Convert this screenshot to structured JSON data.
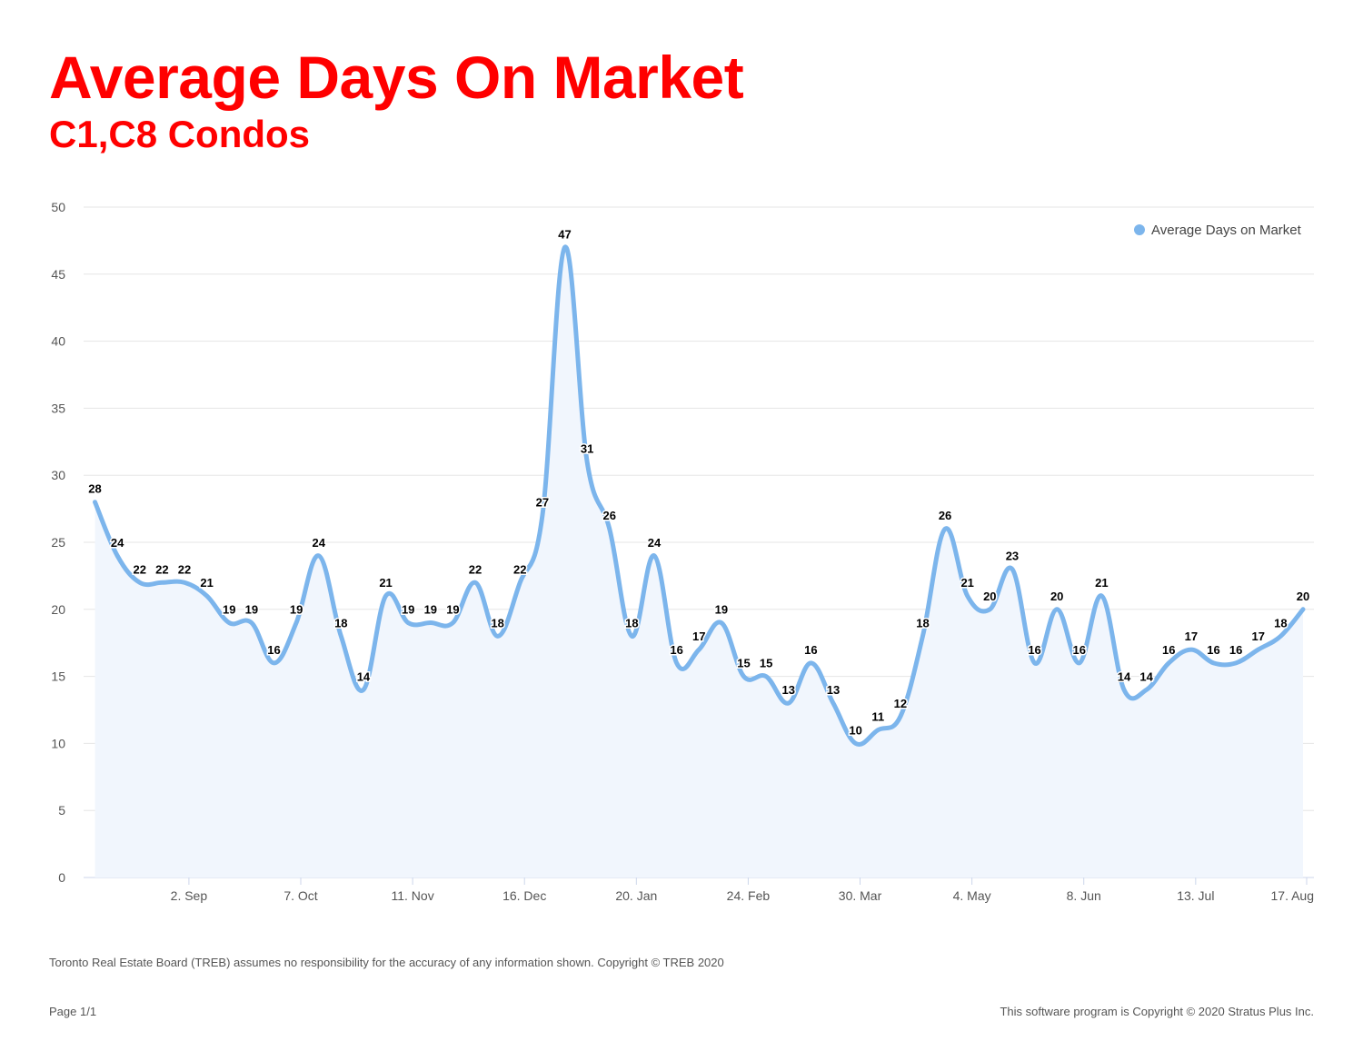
{
  "header": {
    "title": "Average Days On Market",
    "subtitle": "C1,C8 Condos"
  },
  "footer": {
    "disclaimer": "Toronto Real Estate Board (TREB) assumes no responsibility for the accuracy of any information shown. Copyright © TREB 2020",
    "page": "Page 1/1",
    "copyright": "This software program is Copyright © 2020 Stratus Plus Inc."
  },
  "colors": {
    "title": "#ff0000",
    "line": "#7cb5ec",
    "area": "#f1f6fd",
    "grid": "#e6e6e6",
    "label": "#000000"
  },
  "chart_data": {
    "type": "area",
    "title": "Average Days On Market",
    "subtitle": "C1,C8 Condos",
    "x_tick_labels": [
      "2. Sep",
      "7. Oct",
      "11. Nov",
      "16. Dec",
      "20. Jan",
      "24. Feb",
      "30. Mar",
      "4. May",
      "8. Jun",
      "13. Jul",
      "17. Aug"
    ],
    "y_ticks": [
      0,
      5,
      10,
      15,
      20,
      25,
      30,
      35,
      40,
      45,
      50
    ],
    "ylim": [
      0,
      50
    ],
    "grid": true,
    "legend_position": "top-right",
    "data_labels": true,
    "series": [
      {
        "name": "Average Days on Market",
        "values": [
          28,
          24,
          22,
          22,
          22,
          21,
          19,
          19,
          16,
          19,
          24,
          18,
          14,
          21,
          19,
          19,
          19,
          22,
          18,
          22,
          27,
          47,
          31,
          26,
          18,
          24,
          16,
          17,
          19,
          15,
          15,
          13,
          16,
          13,
          10,
          11,
          12,
          18,
          26,
          21,
          20,
          23,
          16,
          20,
          16,
          21,
          14,
          14,
          16,
          17,
          16,
          16,
          17,
          18,
          20
        ]
      }
    ]
  }
}
